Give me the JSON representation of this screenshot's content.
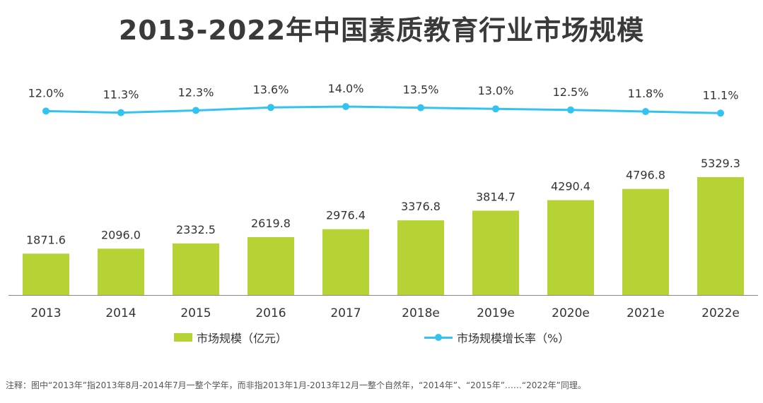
{
  "title": "2013-2022年中国素质教育行业市场规模",
  "chart_data": {
    "type": "bar",
    "title": "2013-2022年中国素质教育行业市场规模",
    "categories": [
      "2013",
      "2014",
      "2015",
      "2016",
      "2017",
      "2018e",
      "2019e",
      "2020e",
      "2021e",
      "2022e"
    ],
    "series": [
      {
        "name": "市场规模（亿元）",
        "type": "bar",
        "values": [
          1871.6,
          2096.0,
          2332.5,
          2619.8,
          2976.4,
          3376.8,
          3814.7,
          4290.4,
          4796.8,
          5329.3
        ],
        "labels": [
          "1871.6",
          "2096.0",
          "2332.5",
          "2619.8",
          "2976.4",
          "3376.8",
          "3814.7",
          "4290.4",
          "4796.8",
          "5329.3"
        ],
        "color": "#b5d334"
      },
      {
        "name": "市场规模增长率（%）",
        "type": "line",
        "values": [
          12.0,
          11.3,
          12.3,
          13.6,
          14.0,
          13.5,
          13.0,
          12.5,
          11.8,
          11.1
        ],
        "labels": [
          "12.0%",
          "11.3%",
          "12.3%",
          "13.6%",
          "14.0%",
          "13.5%",
          "13.0%",
          "12.5%",
          "11.8%",
          "11.1%"
        ],
        "color": "#33c3f0"
      }
    ],
    "xlabel": "",
    "ylabel": "",
    "bar_ylim": [
      0,
      6000
    ],
    "line_ylim": [
      0,
      15
    ],
    "grid": false,
    "legend": "bottom"
  },
  "legend": {
    "bar_label": "市场规模（亿元）",
    "line_label": "市场规模增长率（%）"
  },
  "colors": {
    "bar": "#b5d334",
    "line": "#33c3f0",
    "axis": "#888888",
    "text": "#333333"
  },
  "footnote": "注释：图中“2013年”指2013年8月-2014年7月一整个学年，而非指2013年1月-2013年12月一整个自然年，“2014年”、“2015年”……“2022年”同理。"
}
